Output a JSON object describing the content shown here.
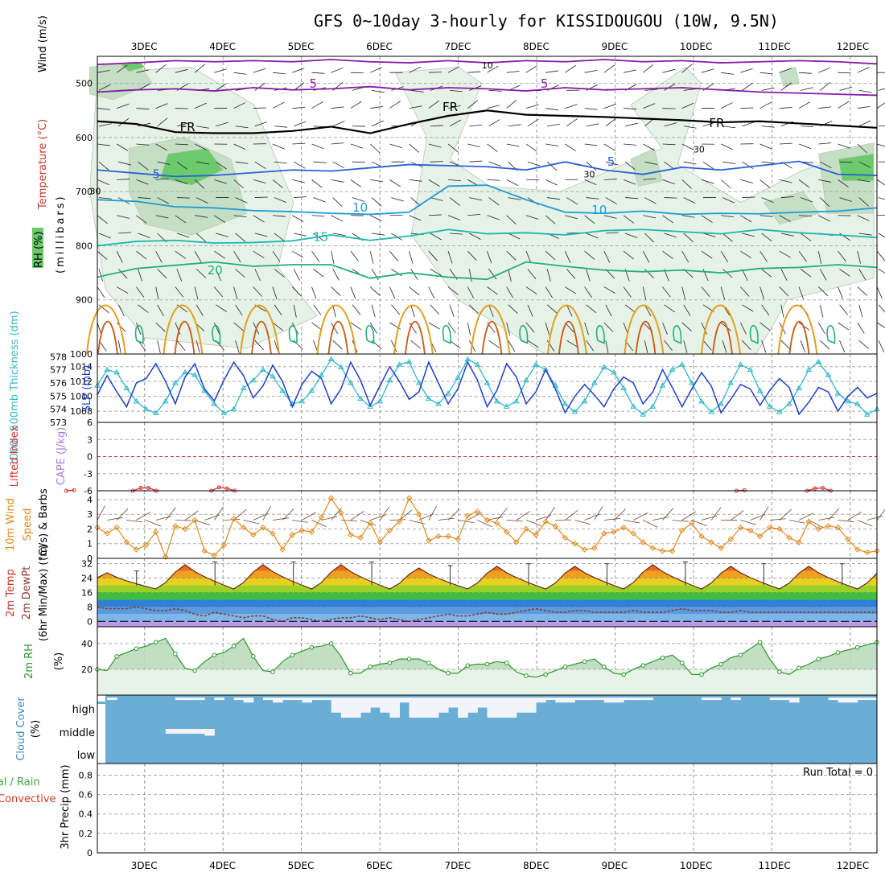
{
  "title": "GFS 0~10day 3-hourly for KISSIDOUGOU (10W, 9.5N)",
  "colors": {
    "rh_light": "#e6f2e6",
    "rh_mid": "#c5dfc5",
    "rh_dark": "#a8c4a8",
    "rh_bright": "#6cc96c",
    "temp_5": "#8a1aa8",
    "temp_fr": "#000000",
    "temp_5b": "#2b5fd6",
    "temp_10": "#1f9bd6",
    "temp_15": "#1cb8b0",
    "temp_20": "#22b07a",
    "warm_orange": "#e0a020",
    "warm_red": "#c85a1a",
    "slp": "#1f3fc8",
    "thick": "#30b8c8",
    "lifted": "#e03030",
    "wind10": "#e08a1a",
    "temp_fill_red": "#e04020",
    "rh2m": "#2a9a2a",
    "cloud": "#6aaed6",
    "cloud_bg": "#f3f3fa"
  },
  "chart_data": [
    {
      "panel": "upper-air",
      "type": "contour",
      "ylabel_wind": "Wind (m/s)",
      "ylabel_temp": "Temperature (°C)",
      "ylabel_rh": "RH (%)",
      "ylabel_units": "(millibars)",
      "yticks": [
        500,
        600,
        700,
        800,
        900,
        1000
      ],
      "ylim": [
        1000,
        450
      ],
      "x_dates": [
        "3DEC",
        "4DEC",
        "5DEC",
        "6DEC",
        "7DEC",
        "8DEC",
        "9DEC",
        "10DEC",
        "11DEC",
        "12DEC"
      ],
      "contour_labels": [
        {
          "text": "5",
          "t": 3.1,
          "p": 508
        },
        {
          "text": "5",
          "t": 6.05,
          "p": 508
        },
        {
          "text": "FR",
          "t": 4.8,
          "p": 551
        },
        {
          "text": "FR",
          "t": 1.45,
          "p": 588
        },
        {
          "text": "FR",
          "t": 8.2,
          "p": 581
        },
        {
          "text": "5",
          "t": 1.1,
          "p": 675
        },
        {
          "text": "5",
          "t": 6.9,
          "p": 652
        },
        {
          "text": "10",
          "t": 3.65,
          "p": 737
        },
        {
          "text": "10",
          "t": 6.7,
          "p": 741
        },
        {
          "text": "15",
          "t": 3.15,
          "p": 791
        },
        {
          "text": "20",
          "t": 1.8,
          "p": 853
        }
      ],
      "rh_labels": [
        {
          "text": "10",
          "t": 5.3,
          "p": 472
        },
        {
          "text": "30",
          "t": 8.0,
          "p": 628
        },
        {
          "text": "30",
          "t": 6.6,
          "p": 674
        },
        {
          "text": "30",
          "t": 0.3,
          "p": 705
        }
      ],
      "isotherms": [
        {
          "label": "5",
          "p": [
            465,
            462,
            458,
            460,
            458,
            460,
            456,
            460,
            462,
            458,
            462,
            458,
            460,
            456,
            460,
            458,
            462,
            460,
            458,
            460,
            464
          ]
        },
        {
          "label": "5",
          "p": [
            516,
            512,
            510,
            514,
            508,
            512,
            510,
            506,
            512,
            508,
            510,
            514,
            508,
            512,
            510,
            508,
            512,
            516,
            518,
            520,
            522
          ]
        },
        {
          "label": "FR",
          "p": [
            570,
            575,
            590,
            592,
            592,
            588,
            580,
            592,
            575,
            560,
            550,
            558,
            560,
            562,
            565,
            568,
            572,
            570,
            574,
            578,
            582
          ]
        },
        {
          "label": "5",
          "p": [
            660,
            666,
            672,
            670,
            665,
            660,
            662,
            656,
            650,
            652,
            654,
            660,
            645,
            660,
            668,
            655,
            660,
            652,
            644,
            668,
            670
          ]
        },
        {
          "label": "10",
          "p": [
            715,
            718,
            728,
            730,
            735,
            737,
            740,
            742,
            738,
            690,
            688,
            715,
            738,
            740,
            736,
            742,
            740,
            741,
            738,
            736,
            730
          ]
        },
        {
          "label": "15",
          "p": [
            800,
            792,
            790,
            795,
            794,
            791,
            780,
            790,
            782,
            770,
            778,
            776,
            780,
            772,
            770,
            774,
            778,
            770,
            776,
            780,
            785
          ]
        },
        {
          "label": "20",
          "p": [
            858,
            842,
            836,
            830,
            838,
            835,
            835,
            860,
            850,
            858,
            862,
            830,
            838,
            845,
            848,
            845,
            850,
            842,
            840,
            835,
            840
          ]
        }
      ]
    },
    {
      "panel": "slp-thickness",
      "type": "line",
      "ylabel_left": "1000~500mb Thickness (dm)",
      "ylabel_right": "SLP (mb)",
      "yticks_thickness": [
        573,
        574,
        575,
        576,
        577,
        578
      ],
      "yticks_slp": [
        1008,
        1010,
        1012,
        1014
      ],
      "series": [
        {
          "name": "SLP (mb)",
          "units": "mb",
          "values": [
            1010.2,
            1012.8,
            1010.6,
            1008.6,
            1011.8,
            1012.4,
            1014.4,
            1012.0,
            1009.0,
            1012.6,
            1014.4,
            1011.0,
            1009.4,
            1012.2,
            1014.6,
            1012.8,
            1009.8,
            1011.4,
            1014.2,
            1012.0,
            1008.6,
            1011.6,
            1013.4,
            1012.4,
            1009.0,
            1011.0,
            1014.6,
            1012.2,
            1008.8,
            1011.4,
            1014.0,
            1012.0,
            1009.6,
            1010.6,
            1014.6,
            1011.8,
            1009.0,
            1011.0,
            1014.6,
            1012.2,
            1008.6,
            1010.8,
            1014.4,
            1012.6,
            1009.0,
            1010.6,
            1013.6,
            1011.0,
            1007.8,
            1010.0,
            1011.6,
            1010.2,
            1008.6,
            1011.0,
            1012.6,
            1011.8,
            1009.0,
            1010.6,
            1013.6,
            1011.2,
            1008.6,
            1011.0,
            1013.2,
            1011.4,
            1007.8,
            1009.6,
            1011.6,
            1011.0,
            1008.8,
            1010.8,
            1012.4,
            1011.2,
            1007.6,
            1009.2,
            1011.2,
            1010.6,
            1008.0,
            1010.0,
            1011.2,
            1009.8,
            1010.4
          ]
        },
        {
          "name": "Thickness (dm)",
          "units": "dm",
          "values": [
            575.8,
            577.0,
            576.8,
            575.6,
            574.6,
            574.0,
            573.7,
            574.6,
            576.0,
            576.8,
            576.6,
            575.4,
            574.4,
            573.7,
            574.0,
            575.6,
            576.2,
            577.0,
            576.5,
            575.4,
            574.4,
            574.6,
            575.4,
            576.6,
            577.8,
            577.2,
            576.0,
            574.8,
            574.2,
            574.6,
            576.2,
            577.4,
            577.6,
            576.0,
            574.8,
            574.4,
            575.2,
            576.4,
            577.8,
            577.4,
            576.0,
            574.6,
            574.2,
            574.6,
            576.2,
            577.4,
            577.0,
            575.8,
            574.4,
            573.8,
            574.6,
            576.0,
            577.2,
            576.8,
            575.6,
            574.2,
            573.6,
            574.2,
            575.8,
            577.0,
            577.4,
            576.0,
            574.6,
            573.8,
            574.4,
            576.0,
            577.4,
            577.0,
            575.4,
            574.2,
            573.8,
            574.4,
            575.6,
            577.0,
            577.6,
            576.6,
            575.2,
            574.6,
            574.4,
            573.6,
            574.0
          ]
        }
      ]
    },
    {
      "panel": "cape-lifted",
      "type": "line",
      "ylabel_left": "Lifted Index",
      "ylabel_right": "CAPE (J/kg)",
      "yticks": [
        -6,
        -3,
        0,
        3,
        6
      ],
      "ylim": [
        6,
        -6
      ],
      "lifted_index_segments": [
        {
          "t": [
            0.0,
            0.1
          ],
          "values": [
            6.0,
            5.9
          ]
        },
        {
          "t": [
            0.85,
            0.95,
            1.05,
            1.15
          ],
          "values": [
            6.0,
            5.5,
            5.5,
            6.0
          ]
        },
        {
          "t": [
            1.85,
            1.95,
            2.05,
            2.15
          ],
          "values": [
            6.0,
            5.4,
            5.6,
            6.0
          ]
        },
        {
          "t": [
            8.55,
            8.65
          ],
          "values": [
            6.0,
            5.9
          ]
        },
        {
          "t": [
            9.45,
            9.55,
            9.65,
            9.75
          ],
          "values": [
            6.0,
            5.6,
            5.5,
            6.0
          ]
        }
      ]
    },
    {
      "panel": "wind10m",
      "type": "line",
      "ylabel": "10m Wind Speed (m/s) & Barbs",
      "yticks": [
        0,
        1,
        2,
        3,
        4
      ],
      "ylim": [
        0,
        4.6
      ],
      "values": [
        2.1,
        1.7,
        2.1,
        1.1,
        0.6,
        0.9,
        1.8,
        0.1,
        2.2,
        2.0,
        2.6,
        0.5,
        0.2,
        0.9,
        2.7,
        2.1,
        1.6,
        2.1,
        1.7,
        0.6,
        1.6,
        1.9,
        1.8,
        2.8,
        4.1,
        3.1,
        1.6,
        1.4,
        2.4,
        1.1,
        1.9,
        2.5,
        4.1,
        3.0,
        1.2,
        1.5,
        1.5,
        1.3,
        2.9,
        3.2,
        2.6,
        2.4,
        1.8,
        1.1,
        2.0,
        1.6,
        2.5,
        2.2,
        1.4,
        1.0,
        0.6,
        0.7,
        1.7,
        1.8,
        2.1,
        1.7,
        1.1,
        0.7,
        0.5,
        0.5,
        1.9,
        2.4,
        1.5,
        1.1,
        0.7,
        1.3,
        2.1,
        1.9,
        1.5,
        2.1,
        2.0,
        1.4,
        1.1,
        2.5,
        2.0,
        2.2,
        2.1,
        1.3,
        0.6,
        0.4,
        0.5
      ]
    },
    {
      "panel": "temp2m",
      "type": "area",
      "ylabel": "2m Temp 2m DewPt (6hr Min/Max) (°C)",
      "yticks": [
        0,
        8,
        16,
        24,
        32
      ],
      "ylim": [
        -3,
        35
      ],
      "temp_daily_max": [
        28,
        33,
        33,
        33,
        31,
        32,
        32,
        33,
        32,
        32
      ],
      "temp_daily_min": [
        18,
        18,
        18,
        18,
        18,
        18,
        18,
        18,
        18,
        18
      ],
      "dewpoint": [
        8,
        7,
        7,
        7,
        8,
        7,
        6,
        6,
        7,
        6,
        4,
        3,
        5,
        4,
        3,
        2,
        3,
        3,
        1,
        0,
        2,
        2,
        1,
        0,
        1,
        2,
        2,
        3,
        2,
        1,
        2,
        1,
        0,
        1,
        2,
        3,
        4,
        3,
        3,
        4,
        5,
        4,
        4,
        5,
        6,
        7,
        6,
        5,
        5,
        6,
        6,
        5,
        5,
        5,
        5,
        6,
        5,
        5,
        5,
        6,
        7,
        6,
        6,
        6,
        5,
        5,
        6,
        5,
        5,
        5,
        5,
        5,
        5,
        5,
        5,
        5,
        5,
        5,
        5,
        5,
        5
      ]
    },
    {
      "panel": "rh2m",
      "type": "area",
      "ylabel": "2m RH (%)",
      "yticks": [
        20,
        40
      ],
      "ylim": [
        0,
        53
      ],
      "values": [
        20,
        19,
        30,
        33,
        36,
        38,
        41,
        44,
        32,
        21,
        19,
        26,
        31,
        33,
        38,
        44,
        30,
        19,
        18,
        26,
        31,
        34,
        37,
        38,
        40,
        30,
        17,
        17,
        22,
        24,
        25,
        28,
        28,
        28,
        25,
        20,
        17,
        17,
        23,
        24,
        24,
        26,
        25,
        18,
        15,
        14,
        16,
        19,
        22,
        24,
        26,
        28,
        22,
        17,
        16,
        20,
        23,
        26,
        29,
        31,
        25,
        16,
        16,
        21,
        24,
        29,
        31,
        36,
        41,
        28,
        18,
        16,
        21,
        24,
        28,
        30,
        33,
        35,
        37,
        39,
        41
      ]
    },
    {
      "panel": "cloud-cover",
      "type": "area",
      "ylabel": "Cloud Cover (%)",
      "levels": [
        "high",
        "middle",
        "low"
      ],
      "high": [
        100,
        95,
        100,
        100,
        100,
        100,
        100,
        100,
        95,
        95,
        95,
        100,
        95,
        100,
        95,
        90,
        100,
        95,
        90,
        95,
        95,
        90,
        95,
        95,
        70,
        60,
        60,
        70,
        80,
        70,
        60,
        90,
        60,
        60,
        60,
        70,
        80,
        60,
        70,
        80,
        60,
        60,
        60,
        70,
        70,
        90,
        95,
        90,
        90,
        95,
        95,
        95,
        90,
        90,
        95,
        95,
        95,
        100,
        100,
        100,
        100,
        100,
        95,
        95,
        100,
        95,
        100,
        100,
        100,
        95,
        95,
        90,
        100,
        100,
        100,
        95,
        90,
        90,
        95,
        95,
        100
      ],
      "middle": [
        100,
        100,
        100,
        100,
        100,
        100,
        100,
        50,
        50,
        50,
        50,
        30,
        100,
        100,
        100,
        100,
        100,
        100,
        100,
        100,
        100,
        100,
        100,
        100,
        100,
        100,
        100,
        100,
        100,
        100,
        100,
        100,
        100,
        100,
        100,
        100,
        100,
        100,
        100,
        100,
        100,
        100,
        100,
        100,
        100,
        100,
        100,
        100,
        100,
        100,
        100,
        100,
        100,
        100,
        100,
        100,
        100,
        100,
        100,
        100,
        100,
        100,
        100,
        100,
        100,
        100,
        100,
        100,
        100,
        100,
        100,
        100,
        100,
        100,
        100,
        100,
        100,
        100,
        100,
        100,
        100
      ]
    },
    {
      "panel": "precip",
      "type": "bar",
      "ylabel_left": "Total / Rain",
      "ylabel_conv": "Convective",
      "ylabel_units": "3hr Precip (mm)",
      "yticks": [
        0,
        0.2,
        0.4,
        0.6,
        0.8
      ],
      "ylim": [
        0,
        0.92
      ],
      "values": [],
      "run_total": "Run Total = 0"
    }
  ]
}
